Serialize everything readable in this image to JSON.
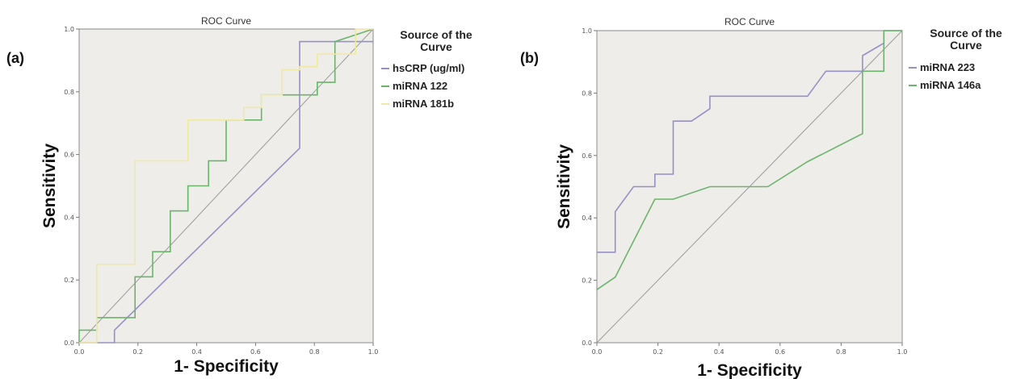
{
  "chart_data": [
    {
      "type": "line",
      "panel_label": "(a)",
      "title": "ROC Curve",
      "xlabel": "1- Specificity",
      "ylabel": "Sensitivity",
      "xlim": [
        0,
        1
      ],
      "ylim": [
        0,
        1
      ],
      "xticks": [
        "0.0",
        "0.2",
        "0.4",
        "0.6",
        "0.8",
        "1.0"
      ],
      "yticks": [
        "0.0",
        "0.2",
        "0.4",
        "0.6",
        "0.8",
        "1.0"
      ],
      "grid": false,
      "legend_title": "Source of the Curve",
      "legend_position": "right",
      "series": [
        {
          "name": "hsCRP (ug/ml)",
          "color": "#9590c6",
          "x": [
            0,
            0.12,
            0.12,
            0.75,
            0.75,
            1.0
          ],
          "y": [
            0,
            0,
            0.04,
            0.62,
            0.96,
            0.96
          ]
        },
        {
          "name": "miRNA 122",
          "color": "#6bb46b",
          "x": [
            0,
            0,
            0.06,
            0.06,
            0.19,
            0.19,
            0.25,
            0.25,
            0.31,
            0.31,
            0.37,
            0.37,
            0.44,
            0.44,
            0.5,
            0.5,
            0.62,
            0.62,
            0.81,
            0.81,
            0.87,
            0.87,
            1.0
          ],
          "y": [
            0,
            0.04,
            0.04,
            0.08,
            0.08,
            0.21,
            0.21,
            0.29,
            0.29,
            0.42,
            0.42,
            0.5,
            0.5,
            0.58,
            0.58,
            0.71,
            0.71,
            0.79,
            0.79,
            0.83,
            0.83,
            0.96,
            1.0
          ]
        },
        {
          "name": "miRNA 181b",
          "color": "#efe9a6",
          "x": [
            0,
            0.06,
            0.06,
            0.19,
            0.19,
            0.37,
            0.37,
            0.56,
            0.56,
            0.62,
            0.62,
            0.69,
            0.69,
            0.75,
            0.75,
            0.81,
            0.81,
            0.94,
            0.94,
            1.0
          ],
          "y": [
            0,
            0,
            0.25,
            0.25,
            0.58,
            0.58,
            0.71,
            0.71,
            0.75,
            0.75,
            0.79,
            0.79,
            0.87,
            0.87,
            0.88,
            0.88,
            0.92,
            0.92,
            1.0,
            1.0
          ]
        }
      ]
    },
    {
      "type": "line",
      "panel_label": "(b)",
      "title": "ROC Curve",
      "xlabel": "1- Specificity",
      "ylabel": "Sensitivity",
      "xlim": [
        0,
        1
      ],
      "ylim": [
        0,
        1
      ],
      "xticks": [
        "0.0",
        "0.2",
        "0.4",
        "0.6",
        "0.8",
        "1.0"
      ],
      "yticks": [
        "0.0",
        "0.2",
        "0.4",
        "0.6",
        "0.8",
        "1.0"
      ],
      "grid": false,
      "legend_title": "Source of the Curve",
      "legend_position": "right",
      "series": [
        {
          "name": "miRNA 223",
          "color": "#9590c6",
          "x": [
            0,
            0.06,
            0.06,
            0.12,
            0.12,
            0.19,
            0.19,
            0.25,
            0.25,
            0.31,
            0.37,
            0.37,
            0.69,
            0.75,
            0.75,
            0.87,
            0.87,
            0.94,
            0.94,
            1.0
          ],
          "y": [
            0.29,
            0.29,
            0.42,
            0.5,
            0.5,
            0.5,
            0.54,
            0.54,
            0.71,
            0.71,
            0.75,
            0.79,
            0.79,
            0.87,
            0.87,
            0.87,
            0.92,
            0.96,
            1.0,
            1.0
          ]
        },
        {
          "name": "miRNA 146a",
          "color": "#6bb46b",
          "x": [
            0,
            0.06,
            0.19,
            0.25,
            0.37,
            0.56,
            0.69,
            0.87,
            0.87,
            0.94,
            0.94,
            1.0
          ],
          "y": [
            0.17,
            0.21,
            0.46,
            0.46,
            0.5,
            0.5,
            0.58,
            0.67,
            0.87,
            0.87,
            1.0,
            1.0
          ]
        }
      ]
    }
  ]
}
